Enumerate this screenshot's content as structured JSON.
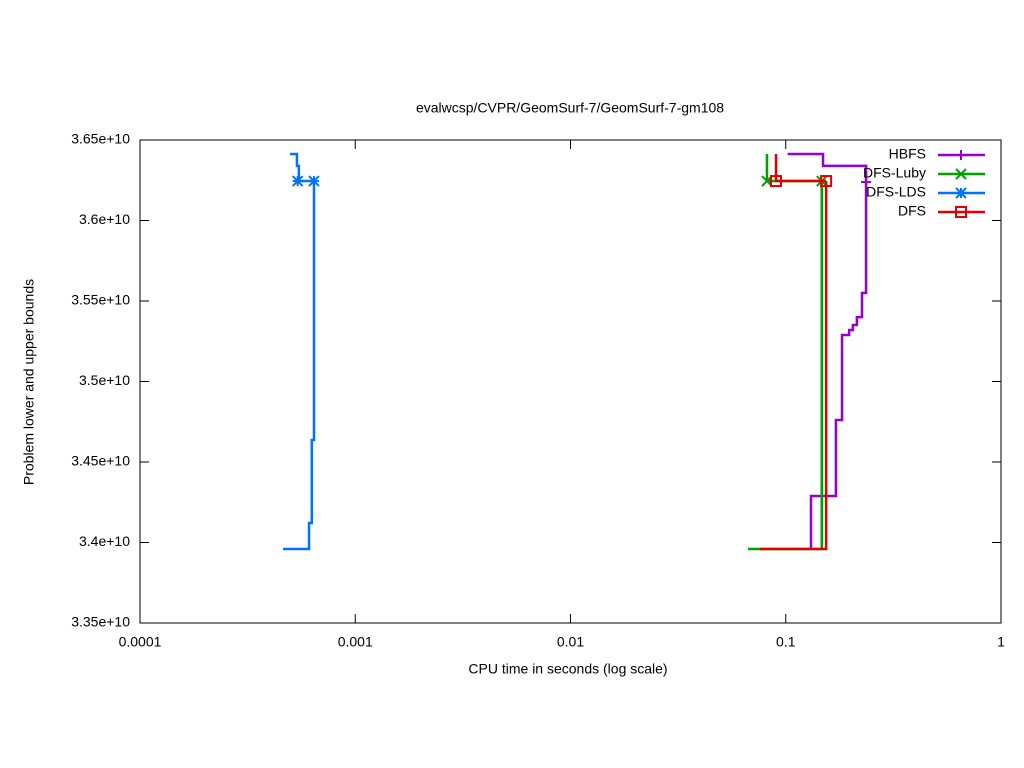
{
  "chart_data": {
    "type": "line",
    "title": "evalwcsp/CVPR/GeomSurf-7/GeomSurf-7-gm108",
    "x_label": "CPU time in seconds (log scale)",
    "y_label": "Problem lower and upper bounds",
    "x_log_scale": true,
    "xlim": [
      0.0001,
      1
    ],
    "xticks": [
      0.0001,
      0.001,
      0.01,
      0.1,
      1
    ],
    "ylim": [
      33500000000,
      36500000000
    ],
    "yticks": [
      {
        "value": 33500000000,
        "label": "3.35e+10"
      },
      {
        "value": 34000000000,
        "label": "3.4e+10"
      },
      {
        "value": 34500000000,
        "label": "3.45e+10"
      },
      {
        "value": 35000000000,
        "label": "3.5e+10"
      },
      {
        "value": 35500000000,
        "label": "3.55e+10"
      },
      {
        "value": 36000000000,
        "label": "3.6e+10"
      },
      {
        "value": 36500000000,
        "label": "3.65e+10"
      }
    ],
    "legend": "top-right",
    "series": [
      {
        "name": "HBFS",
        "color": "#9400d3",
        "marker": "plus",
        "x": [
          0.102,
          0.149,
          0.149,
          0.236,
          0.236,
          null,
          0.131,
          0.131,
          0.171,
          0.171,
          0.1825,
          0.1825,
          0.197,
          0.197,
          0.205,
          0.205,
          0.214,
          0.214,
          0.226,
          0.226,
          0.236,
          0.236
        ],
        "values": [
          36413000000,
          36413000000,
          36339000000,
          36339000000,
          36239000000,
          null,
          33960000000,
          34289000000,
          34289000000,
          34761000000,
          34761000000,
          35289000000,
          35289000000,
          35320000000,
          35320000000,
          35351000000,
          35351000000,
          35400000000,
          35400000000,
          35550000000,
          35550000000,
          36239000000
        ],
        "marker_x": [
          0.236
        ],
        "marker_values": [
          36239000000
        ]
      },
      {
        "name": "DFS-Luby",
        "color": "#00a000",
        "marker": "cross",
        "x": [
          0.0818,
          0.0818,
          0.147,
          null,
          0.0668,
          0.147,
          0.147
        ],
        "values": [
          36413000000,
          36245000000,
          36245000000,
          null,
          33960000000,
          33960000000,
          36245000000
        ],
        "marker_x": [
          0.0818,
          0.147
        ],
        "marker_values": [
          36245000000,
          36245000000
        ]
      },
      {
        "name": "DFS-LDS",
        "color": "#0072ff",
        "marker": "star",
        "x": [
          0.000498,
          0.000536,
          0.000536,
          0.000547,
          0.000547,
          0.000643,
          null,
          0.000462,
          0.00061,
          0.00061,
          0.000628,
          0.000628,
          0.000643,
          0.000643
        ],
        "values": [
          36413000000,
          36413000000,
          36339000000,
          36339000000,
          36245000000,
          36245000000,
          null,
          33960000000,
          33960000000,
          34121000000,
          34121000000,
          34637000000,
          34637000000,
          36245000000
        ],
        "marker_x": [
          0.00054,
          0.000643
        ],
        "marker_values": [
          36245000000,
          36245000000
        ]
      },
      {
        "name": "DFS",
        "color": "#e00000",
        "marker": "square",
        "x": [
          0.0901,
          0.0901,
          0.154,
          null,
          0.0758,
          0.154,
          0.154
        ],
        "values": [
          36413000000,
          36245000000,
          36245000000,
          null,
          33960000000,
          33960000000,
          36245000000
        ],
        "marker_x": [
          0.0901,
          0.154
        ],
        "marker_values": [
          36245000000,
          36245000000
        ]
      }
    ]
  }
}
